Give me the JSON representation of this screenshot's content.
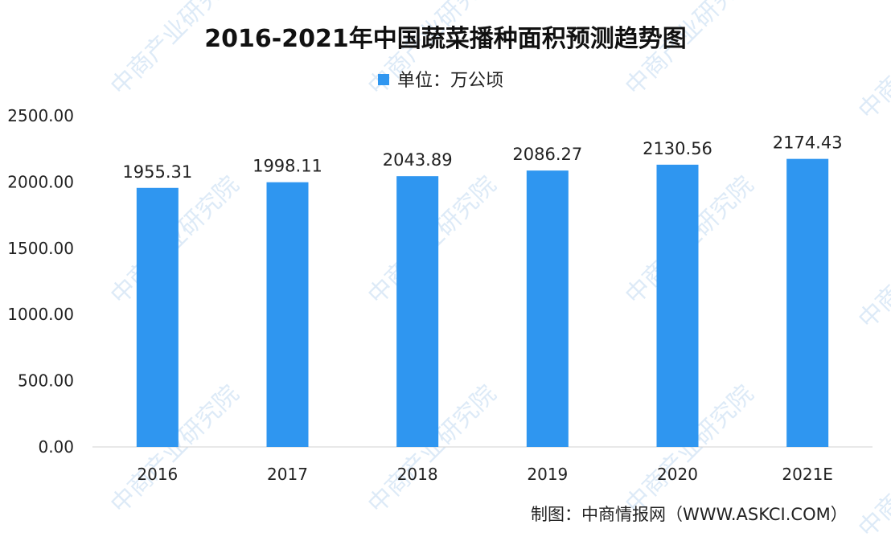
{
  "chart_data": {
    "type": "bar",
    "title": "2016-2021年中国蔬菜播种面积预测趋势图",
    "legend": {
      "label": "单位：万公顷",
      "position": "top-center"
    },
    "categories": [
      "2016",
      "2017",
      "2018",
      "2019",
      "2020",
      "2021E"
    ],
    "series": [
      {
        "name": "单位：万公顷",
        "values": [
          1955.31,
          1998.11,
          2043.89,
          2086.27,
          2130.56,
          2174.43
        ]
      }
    ],
    "data_labels": [
      "1955.31",
      "1998.11",
      "2043.89",
      "2086.27",
      "2130.56",
      "2174.43"
    ],
    "yticks": [
      "0.00",
      "500.00",
      "1000.00",
      "1500.00",
      "2000.00",
      "2500.00"
    ],
    "ylim": [
      0,
      2500
    ],
    "grid": false,
    "bar_color": "#2f96f0"
  },
  "source": "制图：中商情报网（WWW.ASKCI.COM）",
  "watermark": "中商产业研究院"
}
